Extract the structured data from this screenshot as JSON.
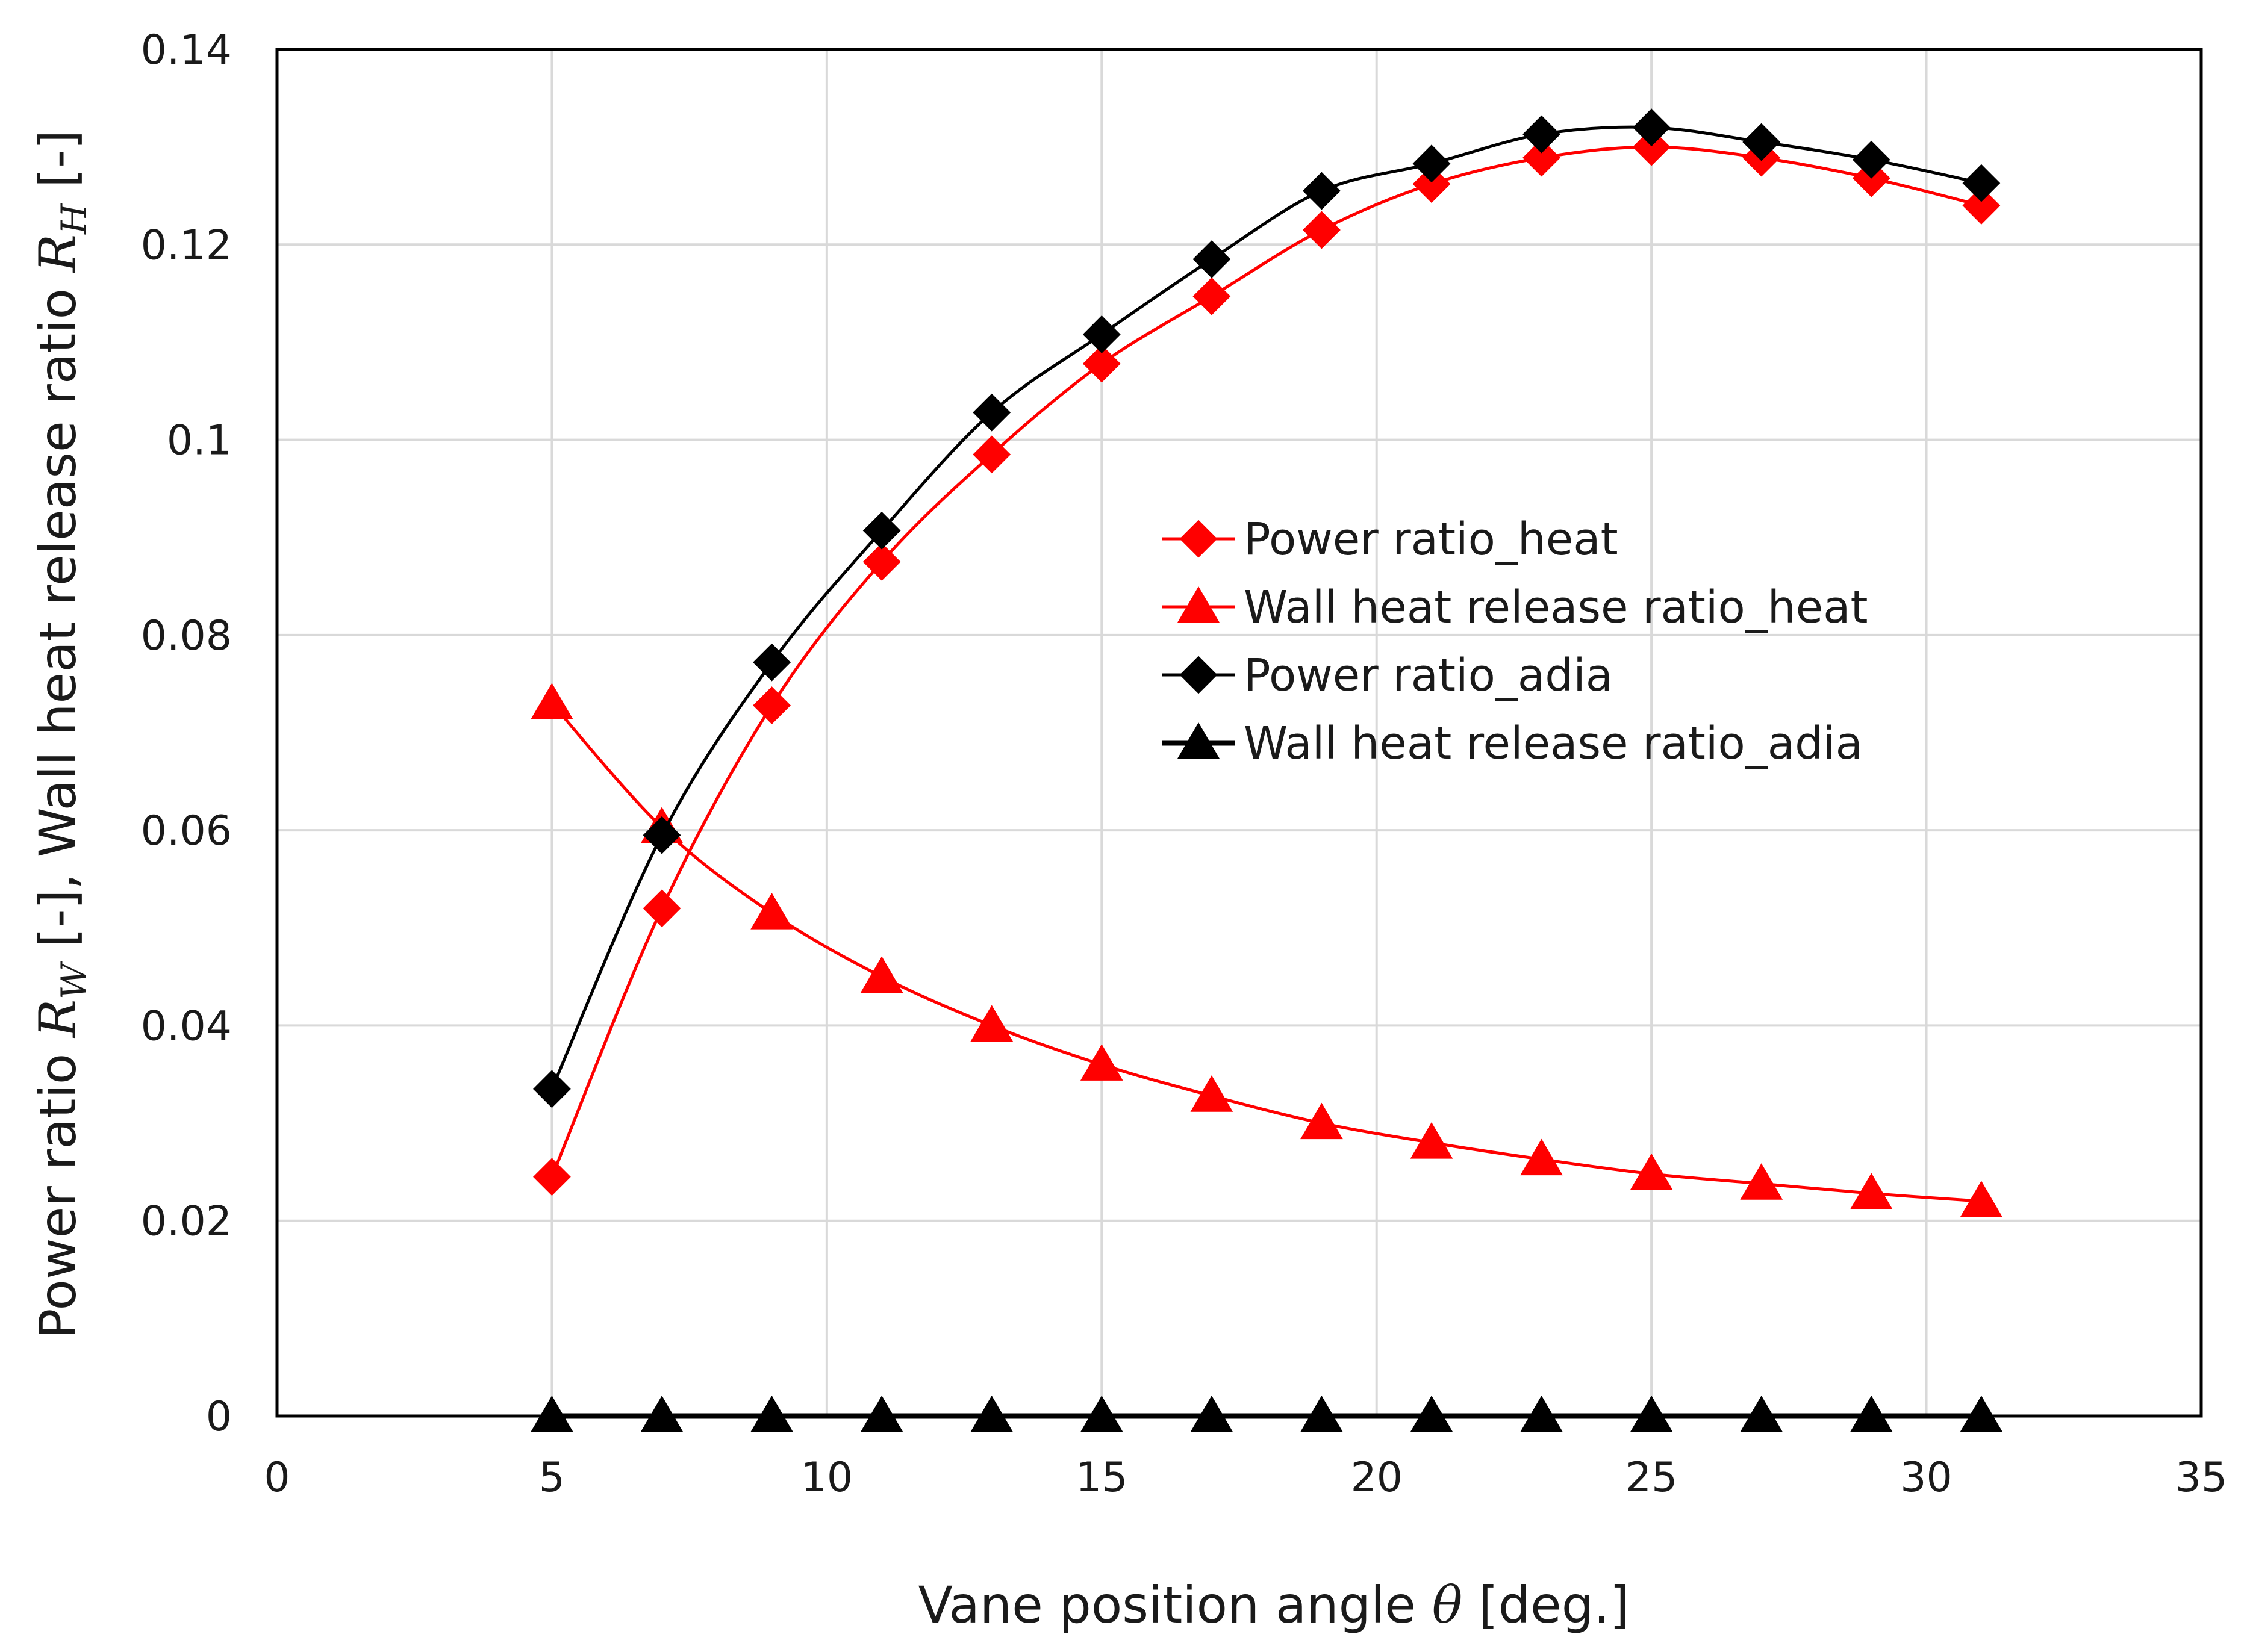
{
  "chart_data": {
    "type": "line",
    "title": "",
    "xlabel_parts": {
      "prefix": "Vane position angle ",
      "symbol": "θ",
      "suffix": " [deg.]"
    },
    "ylabel_parts": {
      "part1": "Power ratio ",
      "sym1": "R",
      "sub1": "W",
      "part2": " [-], Wall heat release ratio ",
      "sym2": "R",
      "sub2": "H",
      "part3": " [-]"
    },
    "xlim": [
      0,
      35
    ],
    "ylim": [
      0,
      0.14
    ],
    "xticks": [
      0,
      5,
      10,
      15,
      20,
      25,
      30,
      35
    ],
    "xtick_labels": [
      "0",
      "5",
      "10",
      "15",
      "20",
      "25",
      "30",
      "35"
    ],
    "yticks": [
      0,
      0.02,
      0.04,
      0.06,
      0.08,
      0.1,
      0.12,
      0.14
    ],
    "ytick_labels": [
      "0",
      "0.02",
      "0.04",
      "0.06",
      "0.08",
      "0.1",
      "0.12",
      "0.14"
    ],
    "grid": true,
    "legend_position": "center-right",
    "x": [
      5,
      7,
      9,
      11,
      13,
      15,
      17,
      19,
      21,
      23,
      25,
      27,
      29,
      31
    ],
    "series": [
      {
        "name": "Power ratio_heat",
        "color": "#ff0000",
        "marker": "diamond",
        "values": [
          0.0245,
          0.052,
          0.0728,
          0.0875,
          0.0985,
          0.1078,
          0.1147,
          0.1215,
          0.1262,
          0.1289,
          0.13,
          0.1289,
          0.1268,
          0.124
        ]
      },
      {
        "name": "Wall heat release ratio_heat",
        "color": "#ff0000",
        "marker": "triangle",
        "values": [
          0.073,
          0.0603,
          0.0515,
          0.045,
          0.04,
          0.036,
          0.0328,
          0.03,
          0.028,
          0.0263,
          0.0248,
          0.0238,
          0.0228,
          0.022
        ]
      },
      {
        "name": "Power ratio_adia",
        "color": "#000000",
        "marker": "diamond",
        "values": [
          0.0335,
          0.0595,
          0.0772,
          0.0907,
          0.1028,
          0.1108,
          0.1185,
          0.1255,
          0.1283,
          0.1313,
          0.132,
          0.1305,
          0.1287,
          0.1263
        ]
      },
      {
        "name": "Wall heat release ratio_adia",
        "color": "#000000",
        "marker": "triangle",
        "values": [
          0,
          0,
          0,
          0,
          0,
          0,
          0,
          0,
          0,
          0,
          0,
          0,
          0,
          0
        ]
      }
    ]
  }
}
